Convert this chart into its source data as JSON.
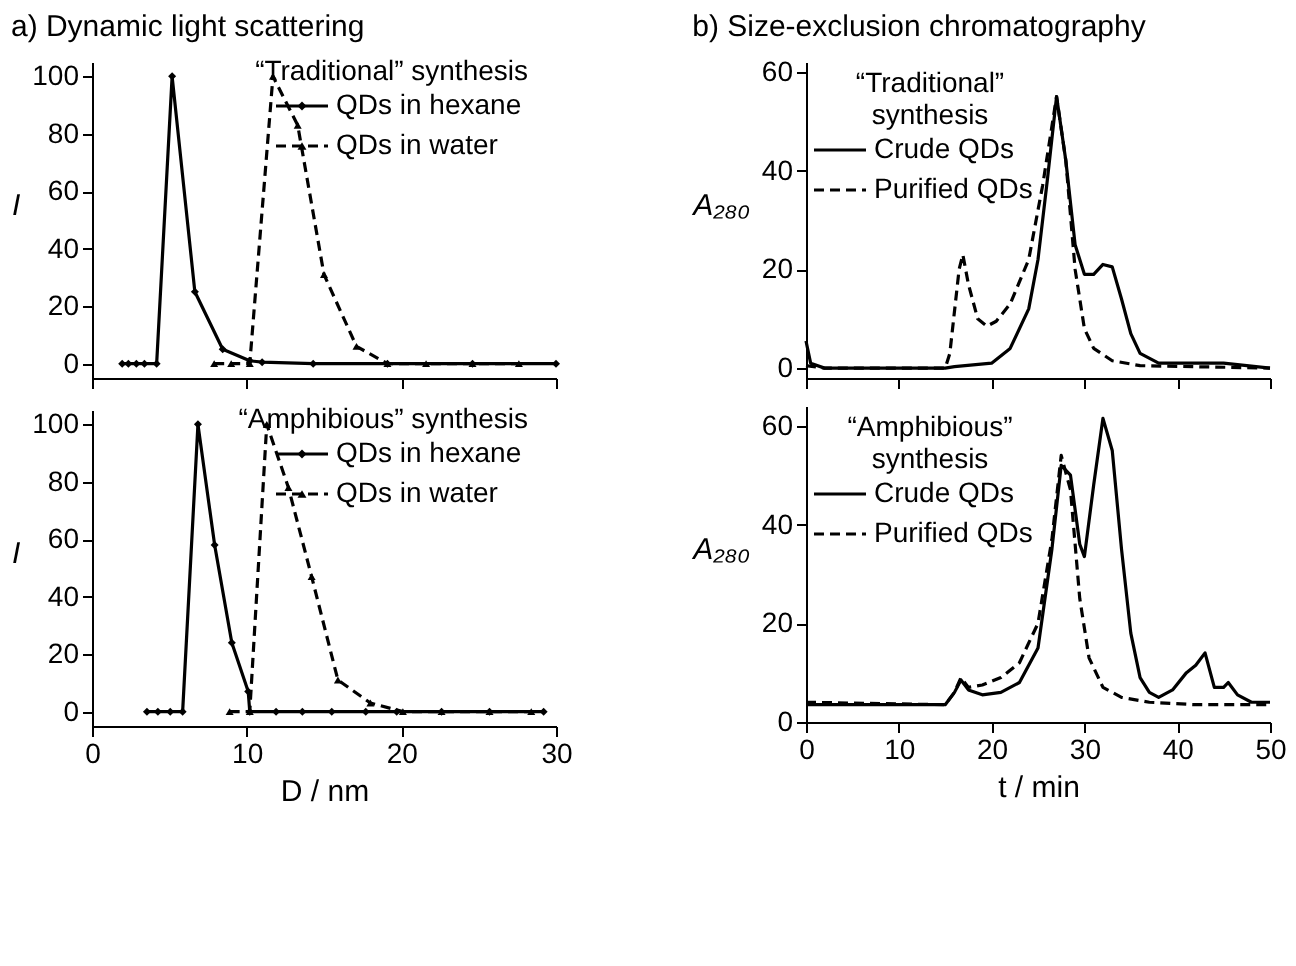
{
  "chart_data": [
    {
      "type": "line",
      "title": "a)  Dynamic light scattering",
      "annotations": [
        "“Traditional” synthesis"
      ],
      "ylabel": "I",
      "xlim": [
        0,
        30
      ],
      "xticks": [
        0,
        10,
        20,
        30
      ],
      "ylim": [
        -5,
        105
      ],
      "yticks": [
        0,
        20,
        40,
        60,
        80,
        100
      ],
      "tick_labels": "y",
      "legend": "top right",
      "grid": false,
      "series": [
        {
          "name": "QDs in hexane",
          "color": "#000000",
          "marker": "diamond",
          "line_style": "solid",
          "x": [
            1.95,
            2.35,
            2.87,
            3.39,
            4.18,
            5.18,
            6.65,
            8.45,
            10.2,
            11.0,
            14.3,
            19.1,
            24.6,
            30
          ],
          "values": [
            0,
            0,
            0,
            0,
            0,
            100,
            25,
            5,
            1,
            0.5,
            0,
            0,
            0,
            0
          ]
        },
        {
          "name": "QDs in water",
          "color": "#000000",
          "marker": "triangle",
          "line_style": "dashed",
          "x": [
            7.9,
            9.0,
            10.2,
            11.7,
            13.3,
            15.0,
            17.1,
            19.1,
            21.6,
            24.6,
            27.6
          ],
          "values": [
            0,
            0,
            0,
            100,
            83,
            31,
            6,
            0,
            0,
            0,
            0
          ]
        }
      ]
    },
    {
      "type": "line",
      "title": "b)  Size-exclusion chromatography",
      "annotations": [
        "“Traditional” synthesis"
      ],
      "ylabel": "A₂₈₀",
      "xlim": [
        0,
        50
      ],
      "xticks": [
        0,
        10,
        20,
        30,
        40,
        50
      ],
      "ylim": [
        -2,
        62
      ],
      "yticks": [
        0,
        20,
        40,
        60
      ],
      "tick_labels": "y",
      "legend": "top left",
      "grid": false,
      "series": [
        {
          "name": "Crude QDs",
          "color": "#000000",
          "marker": "none",
          "line_style": "solid",
          "x": [
            0,
            0.5,
            2,
            15,
            16,
            20,
            22,
            24,
            25,
            26,
            27,
            28,
            29,
            30,
            31,
            32,
            33,
            34,
            35,
            36,
            38,
            45,
            50
          ],
          "values": [
            5.5,
            1,
            0,
            0,
            0.3,
            1,
            4,
            12,
            22,
            38,
            55,
            42,
            25,
            19,
            19,
            21,
            20.5,
            14,
            7,
            3,
            1,
            1,
            0
          ]
        },
        {
          "name": "Purified QDs",
          "color": "#000000",
          "marker": "none",
          "line_style": "dashed",
          "x": [
            0,
            2,
            15,
            15.5,
            16.5,
            16.9,
            17.5,
            18.5,
            19.5,
            20.5,
            22,
            24,
            25.5,
            27,
            28,
            29,
            30,
            31,
            33,
            36,
            50
          ],
          "values": [
            0.5,
            0,
            0,
            3,
            20,
            23,
            17,
            10,
            8.5,
            9.5,
            13,
            22,
            37,
            55,
            42,
            20,
            8,
            4,
            1.5,
            0.5,
            0
          ]
        }
      ]
    },
    {
      "type": "line",
      "annotations": [
        "“Amphibious” synthesis"
      ],
      "xlabel": "D / nm",
      "ylabel": "I",
      "xlim": [
        0,
        30
      ],
      "xticks": [
        0,
        10,
        20,
        30
      ],
      "ylim": [
        -5,
        105
      ],
      "yticks": [
        0,
        20,
        40,
        60,
        80,
        100
      ],
      "legend": "top right",
      "grid": false,
      "series": [
        {
          "name": "QDs in hexane",
          "color": "#000000",
          "marker": "diamond",
          "line_style": "solid",
          "x": [
            3.55,
            4.26,
            5.06,
            5.86,
            6.85,
            7.93,
            9.04,
            10.1,
            10.2,
            11.9,
            13.6,
            15.5,
            17.7,
            19.7,
            22.6,
            25.7,
            29.2
          ],
          "values": [
            0,
            0,
            0,
            0,
            100,
            58,
            24,
            7,
            0,
            0,
            0,
            0,
            0,
            0,
            0,
            0,
            0
          ]
        },
        {
          "name": "QDs in water",
          "color": "#000000",
          "marker": "triangle",
          "line_style": "dashed",
          "x": [
            8.9,
            10.2,
            11.3,
            12.7,
            14.2,
            15.9,
            18.0,
            20.1,
            22.6,
            25.7,
            28.4
          ],
          "values": [
            0,
            0,
            100,
            78,
            47,
            11,
            3,
            0,
            0,
            0,
            0
          ]
        }
      ]
    },
    {
      "type": "line",
      "annotations": [
        "“Amphibious” synthesis"
      ],
      "xlabel": "t / min",
      "ylabel": "A₂₈₀",
      "xlim": [
        0,
        50
      ],
      "xticks": [
        0,
        10,
        20,
        30,
        40,
        50
      ],
      "ylim": [
        0,
        64
      ],
      "yticks": [
        0,
        20,
        40,
        60
      ],
      "legend": "top left",
      "grid": false,
      "series": [
        {
          "name": "Crude QDs",
          "color": "#000000",
          "marker": "none",
          "line_style": "solid",
          "x": [
            0,
            15,
            16,
            16.7,
            17.5,
            19,
            21,
            23,
            25,
            26.5,
            27.5,
            28.5,
            29.5,
            30,
            31,
            32,
            33,
            34,
            35,
            36,
            37,
            38,
            39.5,
            41,
            42,
            43,
            44,
            45,
            45.5,
            46.5,
            48,
            50
          ],
          "values": [
            3.5,
            3.5,
            6,
            8.5,
            6.5,
            5.5,
            6,
            8,
            15,
            35,
            52,
            50,
            36,
            33.5,
            48,
            61.5,
            55,
            35,
            18,
            9,
            6,
            5,
            6.5,
            10,
            11.5,
            14,
            7,
            7,
            8,
            5.5,
            4,
            4
          ]
        },
        {
          "name": "Purified QDs",
          "color": "#000000",
          "marker": "none",
          "line_style": "dashed",
          "x": [
            0,
            15,
            16,
            16.7,
            17.5,
            19,
            21,
            23,
            25,
            26.5,
            27.5,
            28.5,
            29.5,
            30.5,
            32,
            34,
            37,
            42,
            50
          ],
          "values": [
            4,
            3.5,
            6,
            9,
            7,
            7.5,
            9,
            12,
            20,
            37,
            54,
            47,
            25,
            13,
            7,
            5,
            4,
            3.5,
            3.5
          ]
        }
      ]
    }
  ]
}
